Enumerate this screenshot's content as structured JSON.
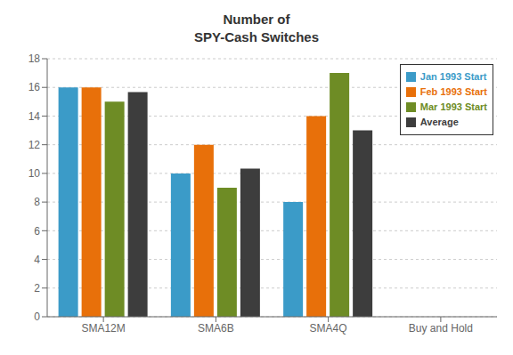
{
  "chart_data": {
    "type": "bar",
    "title": "Number of\nSPY-Cash Switches",
    "categories": [
      "SMA12M",
      "SMA6B",
      "SMA4Q",
      "Buy and Hold"
    ],
    "series": [
      {
        "name": "Jan 1993 Start",
        "color": "#3b9bc8",
        "values": [
          16,
          10,
          8,
          0
        ]
      },
      {
        "name": "Feb 1993 Start",
        "color": "#e8700a",
        "values": [
          16,
          12,
          14,
          0
        ]
      },
      {
        "name": "Mar 1993 Start",
        "color": "#6e8c25",
        "values": [
          15,
          9,
          17,
          0
        ]
      },
      {
        "name": "Average",
        "color": "#3d3d3d",
        "values": [
          15.67,
          10.33,
          13,
          0
        ]
      }
    ],
    "ylim": [
      0,
      18
    ],
    "yticks": [
      0,
      2,
      4,
      6,
      8,
      10,
      12,
      14,
      16,
      18
    ],
    "grid": true,
    "legend": "upper right"
  }
}
